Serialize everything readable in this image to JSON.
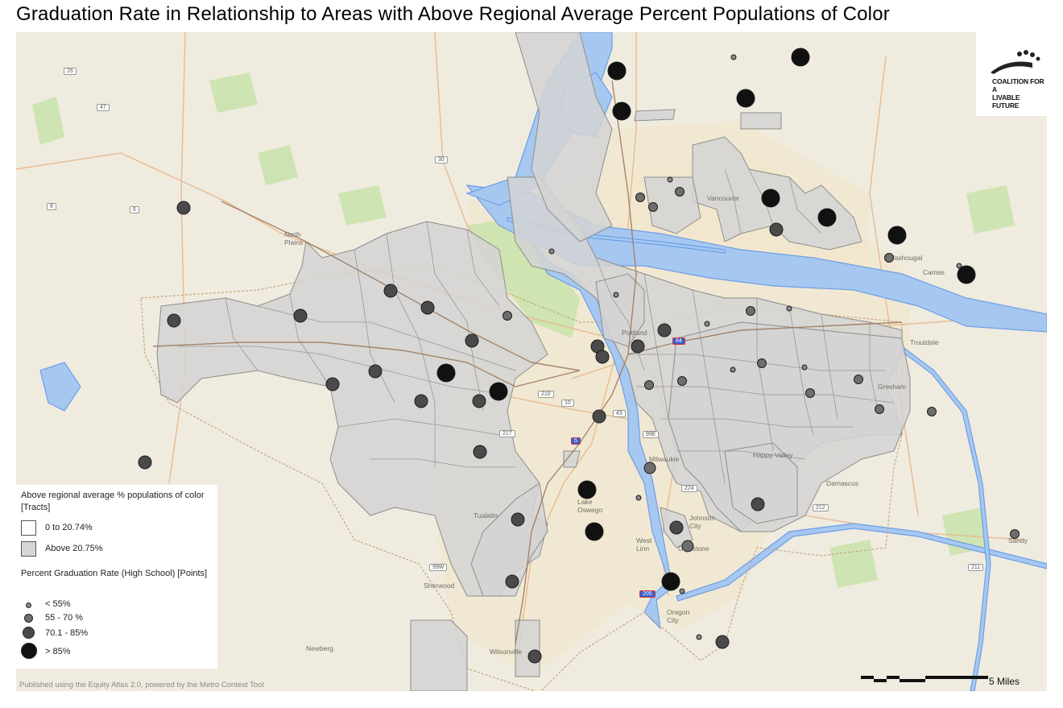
{
  "title": "Graduation Rate in Relationship to Areas with Above Regional Average Percent Populations of Color",
  "logo": {
    "line1": "COALITION FOR A",
    "line2": "LIVABLE FUTURE"
  },
  "legend": {
    "tracts_heading": "Above regional average % populations of color [Tracts]",
    "tract_classes": [
      {
        "label": "0 to 20.74%",
        "color": "#ffffff"
      },
      {
        "label": "Above 20.75%",
        "color": "#d6d6d6"
      }
    ],
    "points_heading": "Percent Graduation Rate (High School) [Points]",
    "point_classes": [
      {
        "label": "< 55%",
        "color": "#8a8a8a"
      },
      {
        "label": "55 - 70 %",
        "color": "#6e6e6e"
      },
      {
        "label": "70.1 - 85%",
        "color": "#4a4a4a"
      },
      {
        "label": "> 85%",
        "color": "#111111"
      }
    ]
  },
  "credit": "Published using the Equity Atlas 2.0, powered by the Metro Context Tool",
  "scale_label": "5 Miles",
  "basemap_labels": [
    "North Plains",
    "Portland",
    "Camas",
    "Washougal",
    "Damascus",
    "Tualatin",
    "Sherwood",
    "Wilsonville",
    "Newberg",
    "West Linn",
    "Oregon City",
    "Lake Oswego",
    "Milwaukie",
    "Gladstone",
    "Happy Valley",
    "Sandy",
    "Troutdale",
    "Gresham",
    "Vancouver",
    "Johnson City"
  ],
  "highway_shields": [
    "26",
    "47",
    "30",
    "8",
    "6",
    "10",
    "5",
    "99E",
    "99W",
    "217",
    "210",
    "224",
    "205",
    "212",
    "84",
    "43",
    "211"
  ],
  "colors": {
    "water": "#a6c8f0",
    "river_stroke": "#6d9ee6",
    "land": "#efebdf",
    "park": "#c7e2a8",
    "tract_fill": "#d4d4d4",
    "tract_stroke": "#8d8d8d",
    "urban": "#f3e5c9"
  }
}
